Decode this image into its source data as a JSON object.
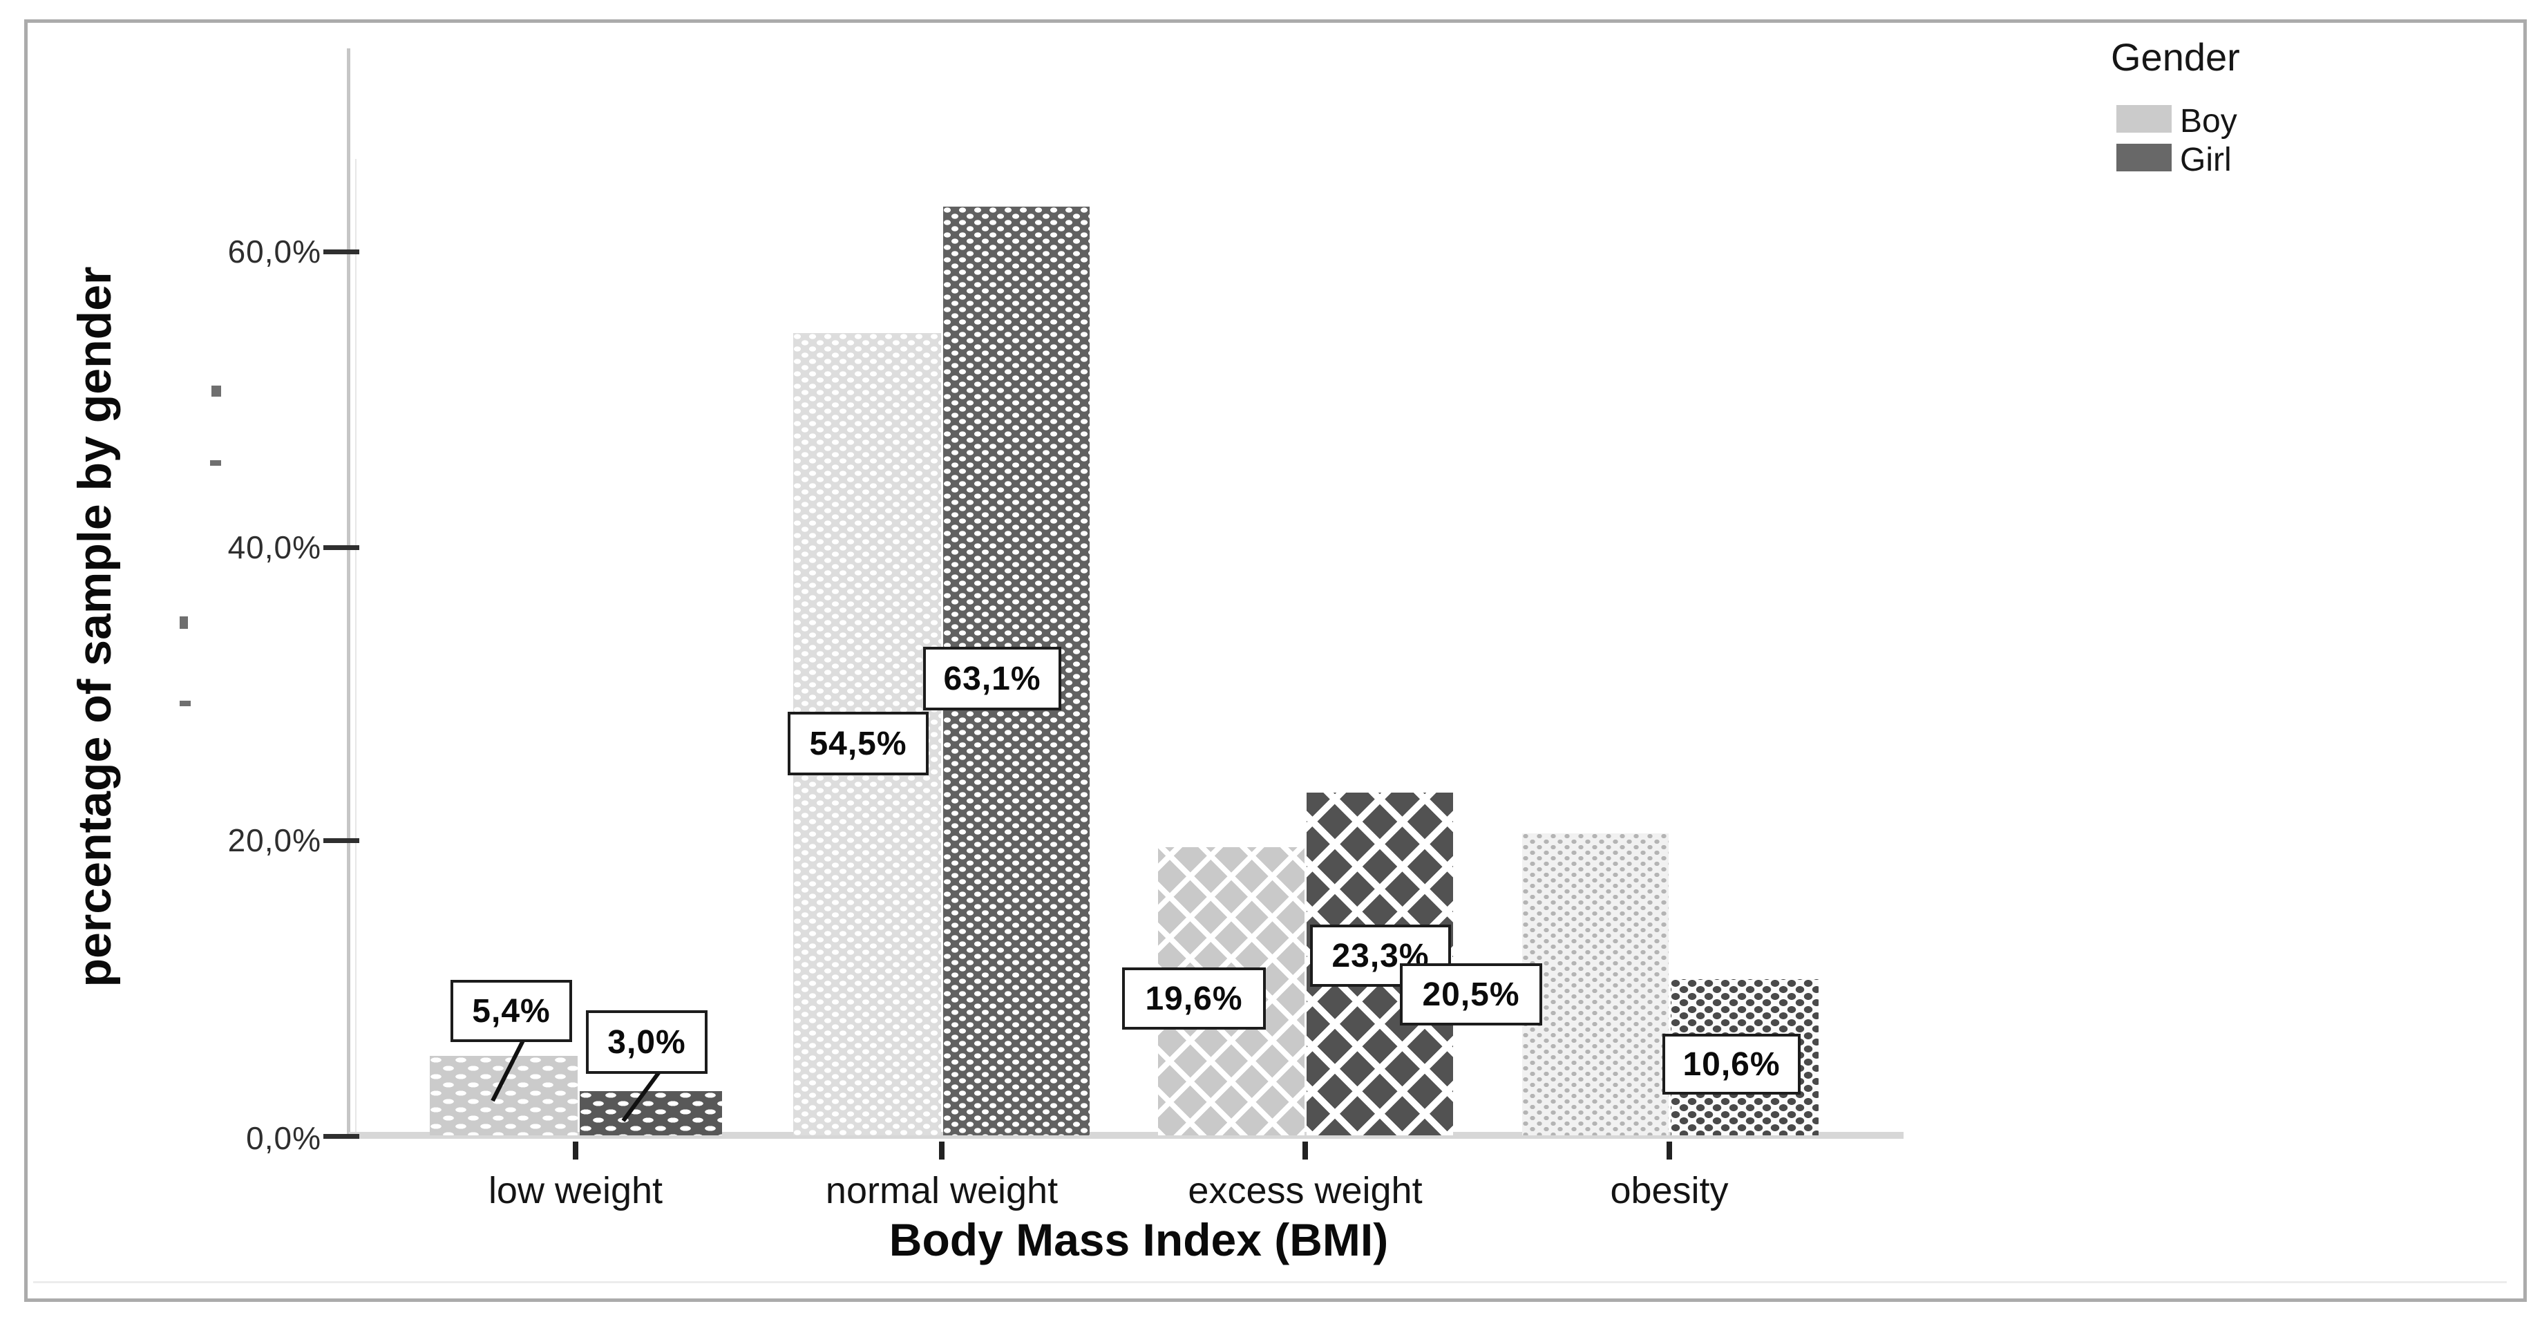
{
  "chart_data": {
    "type": "bar",
    "title": "",
    "xlabel": "Body Mass Index (BMI)",
    "ylabel": "percentage of sample by gender",
    "categories": [
      "low weight",
      "normal weight",
      "excess weight",
      "obesity"
    ],
    "series": [
      {
        "name": "Boy",
        "values": [
          5.4,
          54.5,
          19.6,
          20.5
        ],
        "labels": [
          "5,4%",
          "54,5%",
          "19,6%",
          "20,5%"
        ]
      },
      {
        "name": "Girl",
        "values": [
          3.0,
          63.1,
          23.3,
          10.6
        ],
        "labels": [
          "3,0%",
          "63,1%",
          "23,3%",
          "10,6%"
        ]
      }
    ],
    "y_tick_labels": [
      "60,0%",
      "40,0%",
      "20,0%",
      "0,0%"
    ],
    "ylim": [
      0,
      74
    ],
    "grid": false,
    "legend_position": "top-right"
  },
  "legend": {
    "title": "Gender",
    "items": [
      {
        "label": "Boy",
        "color": "#cbcbcb"
      },
      {
        "label": "Girl",
        "color": "#686868"
      }
    ]
  },
  "colors": {
    "boy_fill": "#cbcbcb",
    "girl_fill": "#686868",
    "axis_line": "#c6c6c6",
    "baseline": "#d7d7d7",
    "frame_border": "#ababab",
    "label_box_border": "#1c1c1c"
  }
}
